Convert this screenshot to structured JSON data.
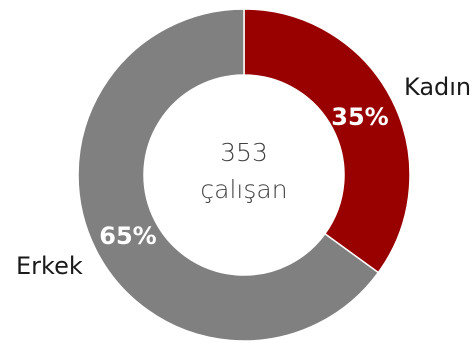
{
  "chart_data": {
    "type": "pie",
    "donut": true,
    "center_text": {
      "value": "353",
      "label": "çalışan"
    },
    "series": [
      {
        "name": "Kadın",
        "value": 35,
        "label": "35%",
        "color": "#990000"
      },
      {
        "name": "Erkek",
        "value": 65,
        "label": "65%",
        "color": "#808080"
      }
    ],
    "legend": "none"
  }
}
